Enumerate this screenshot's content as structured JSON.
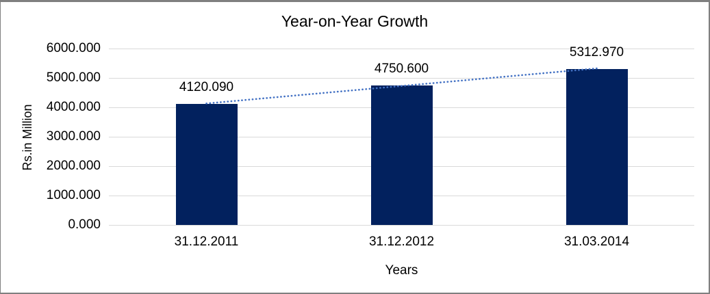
{
  "frame": {
    "background": "#FFFFFF",
    "border_color": "#7F7F7F"
  },
  "chart_data": {
    "type": "bar",
    "title": "Year-on-Year Growth",
    "categories": [
      "31.12.2011",
      "31.12.2012",
      "31.03.2014"
    ],
    "values": [
      4120.09,
      4750.6,
      5312.97
    ],
    "data_labels": [
      "4120.090",
      "4750.600",
      "5312.970"
    ],
    "xlabel": "Years",
    "ylabel": "Rs.in Million",
    "ylim": [
      0,
      6000
    ],
    "ytick_interval": 1000,
    "ytick_labels": [
      "0.000",
      "1000.000",
      "2000.000",
      "3000.000",
      "4000.000",
      "5000.000",
      "6000.000"
    ],
    "grid": true,
    "legend": "none",
    "bar_color": "#02215E",
    "gridline_color": "#D9D9D9",
    "text_color": "#000000",
    "trendline": {
      "type": "linear",
      "style": "dotted",
      "color": "#4472C4"
    }
  }
}
